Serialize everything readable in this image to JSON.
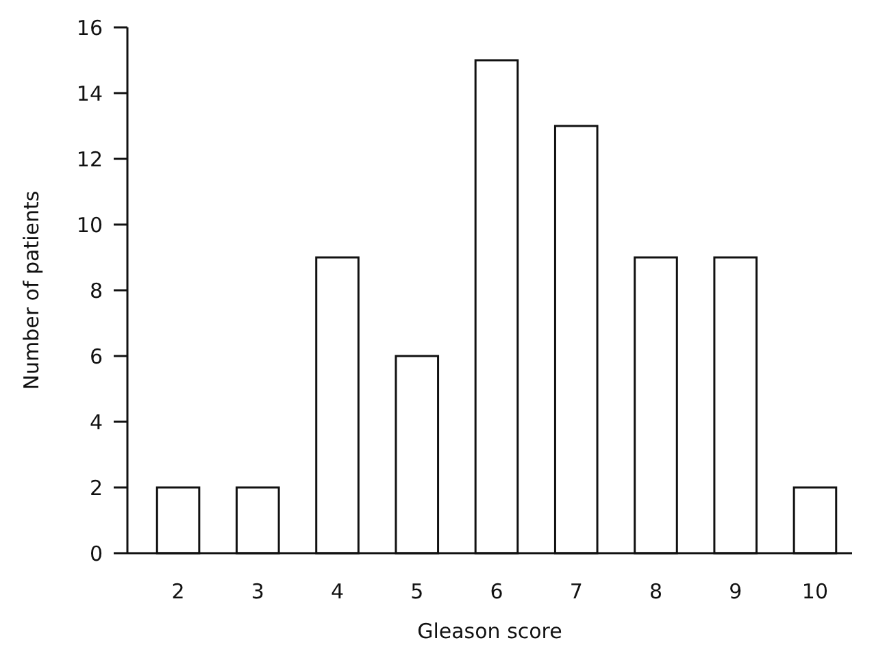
{
  "chart_data": {
    "type": "bar",
    "xlabel": "Gleason score",
    "ylabel": "Number of patients",
    "categories": [
      "2",
      "3",
      "4",
      "5",
      "6",
      "7",
      "8",
      "9",
      "10"
    ],
    "values": [
      2,
      2,
      9,
      6,
      15,
      13,
      9,
      9,
      2
    ],
    "color": "#ffffff",
    "ylim": [
      0,
      16
    ],
    "yticks": [
      0,
      2,
      4,
      6,
      8,
      10,
      12,
      14,
      16
    ],
    "grid": false
  }
}
